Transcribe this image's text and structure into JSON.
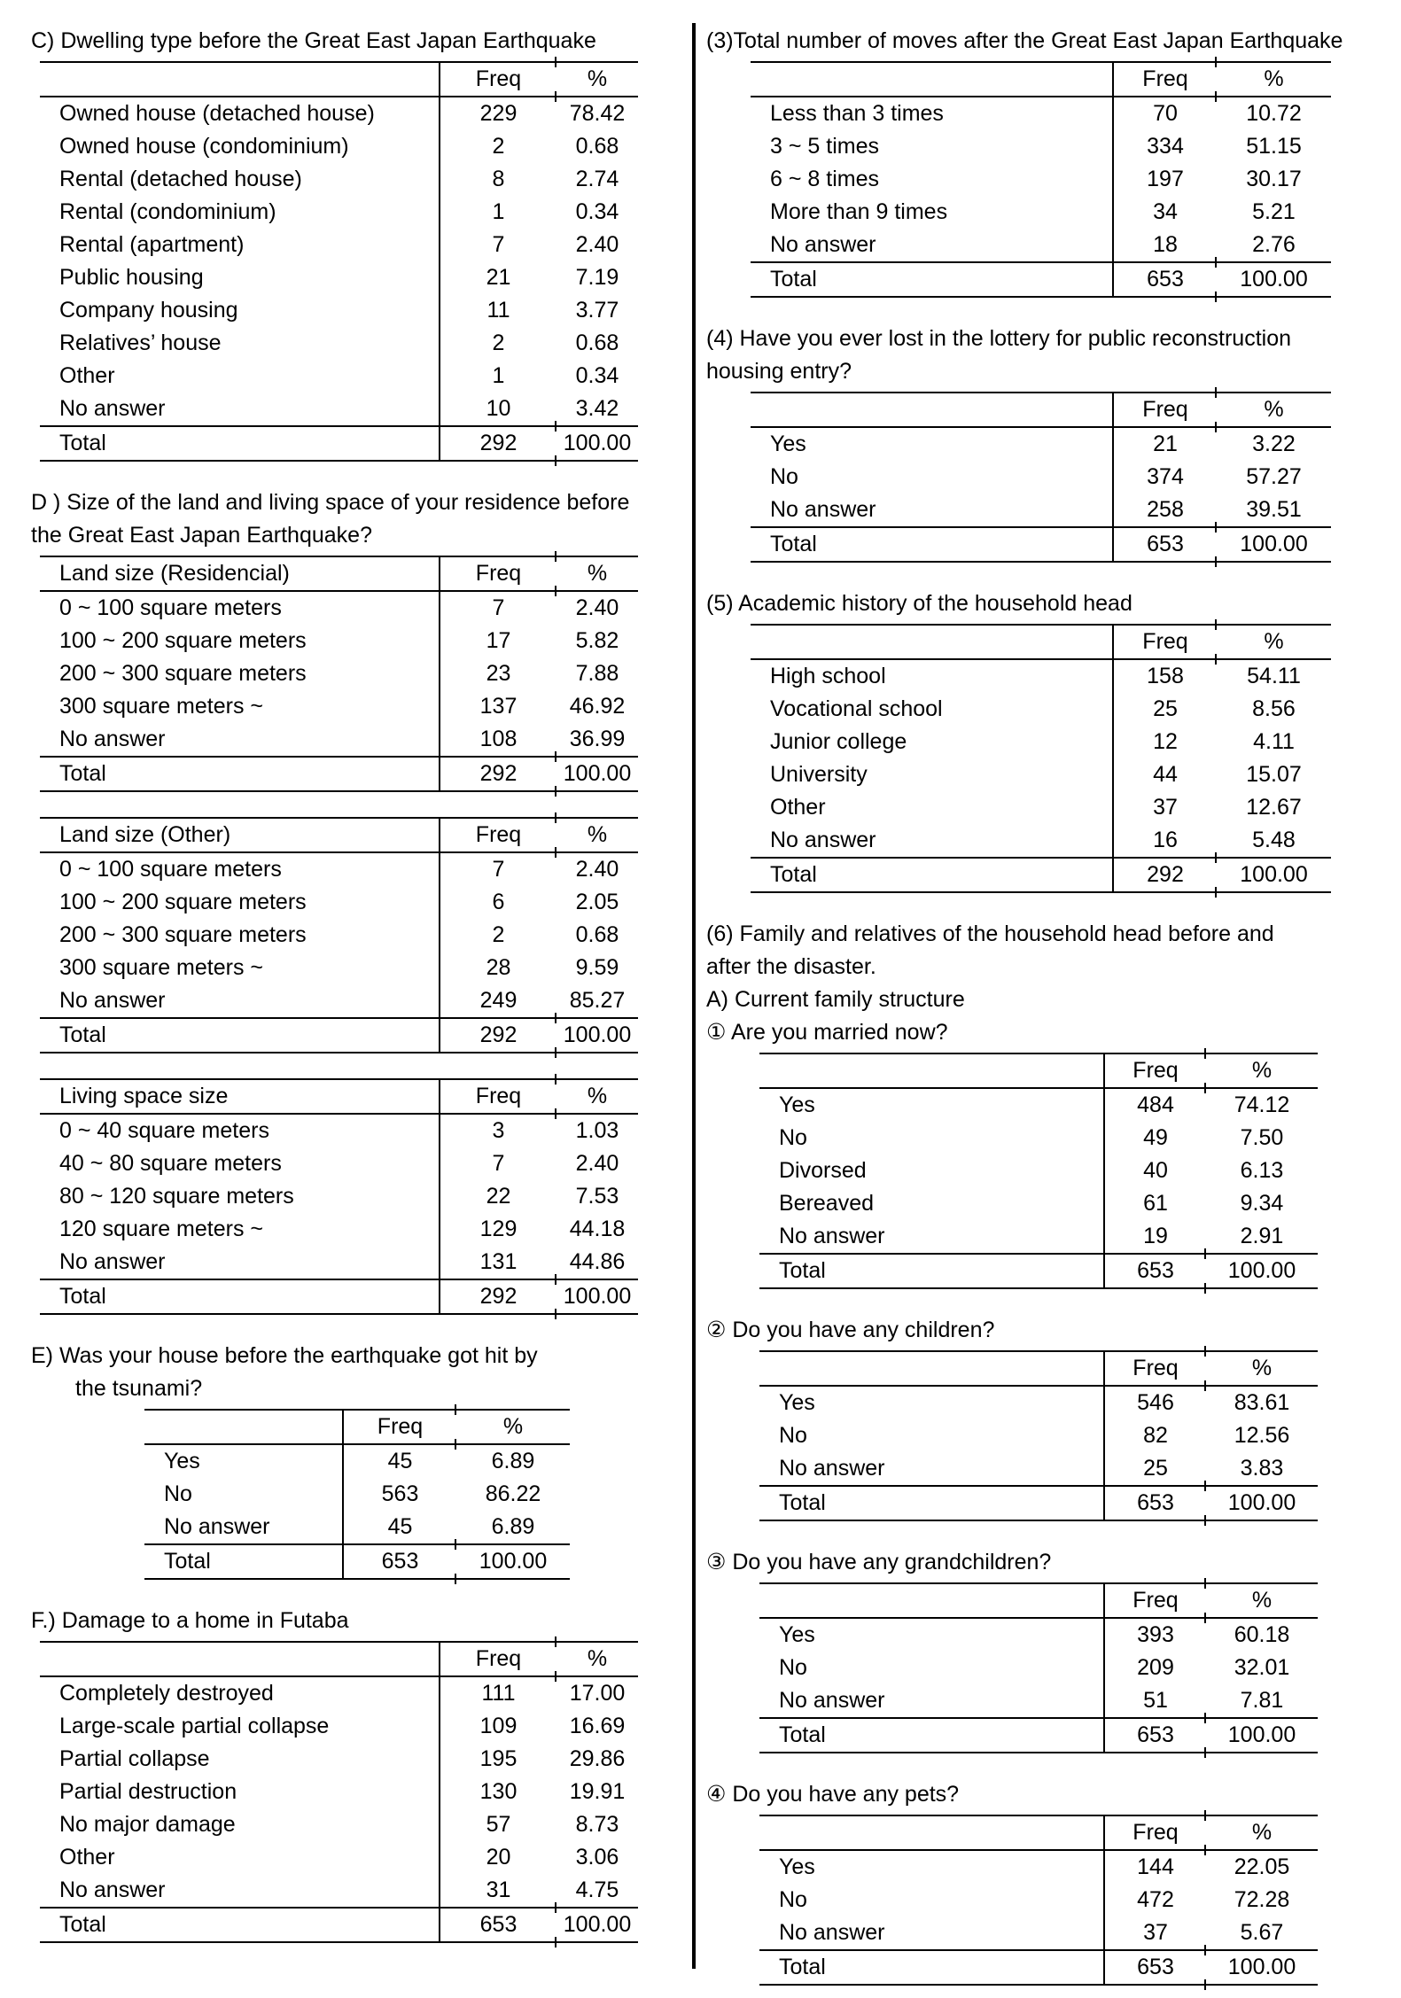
{
  "left": {
    "sections": [
      {
        "id": "C",
        "title_lines": [
          "C) Dwelling type before the Great East Japan Earthquake"
        ],
        "table": {
          "header_label": "",
          "columns": {
            "freq": "Freq",
            "pct": "%"
          },
          "rows": [
            {
              "label": "Owned house (detached house)",
              "freq": "229",
              "pct": "78.42"
            },
            {
              "label": "Owned house (condominium)",
              "freq": "2",
              "pct": "0.68"
            },
            {
              "label": "Rental (detached house)",
              "freq": "8",
              "pct": "2.74"
            },
            {
              "label": "Rental (condominium)",
              "freq": "1",
              "pct": "0.34"
            },
            {
              "label": "Rental (apartment)",
              "freq": "7",
              "pct": "2.40"
            },
            {
              "label": "Public housing",
              "freq": "21",
              "pct": "7.19"
            },
            {
              "label": "Company housing",
              "freq": "11",
              "pct": "3.77"
            },
            {
              "label": "Relatives’ house",
              "freq": "2",
              "pct": "0.68"
            },
            {
              "label": "Other",
              "freq": "1",
              "pct": "0.34"
            },
            {
              "label": "No answer",
              "freq": "10",
              "pct": "3.42"
            }
          ],
          "total": {
            "label": "Total",
            "freq": "292",
            "pct": "100.00"
          }
        }
      },
      {
        "id": "D-residential",
        "title_lines": [
          "D ) Size of the land and living space of your residence before",
          "the Great East Japan Earthquake?"
        ],
        "table": {
          "header_label": "Land size (Residencial)",
          "columns": {
            "freq": "Freq",
            "pct": "%"
          },
          "rows": [
            {
              "label": "0 ~ 100 square meters",
              "freq": "7",
              "pct": "2.40"
            },
            {
              "label": "100 ~ 200 square meters",
              "freq": "17",
              "pct": "5.82"
            },
            {
              "label": "200 ~ 300 square meters",
              "freq": "23",
              "pct": "7.88"
            },
            {
              "label": "300 square meters ~",
              "freq": "137",
              "pct": "46.92"
            },
            {
              "label": "No answer",
              "freq": "108",
              "pct": "36.99"
            }
          ],
          "total": {
            "label": "Total",
            "freq": "292",
            "pct": "100.00"
          }
        }
      },
      {
        "id": "D-other",
        "title_lines": [],
        "table": {
          "header_label": "Land size (Other)",
          "columns": {
            "freq": "Freq",
            "pct": "%"
          },
          "rows": [
            {
              "label": "0 ~ 100 square meters",
              "freq": "7",
              "pct": "2.40"
            },
            {
              "label": "100 ~ 200 square meters",
              "freq": "6",
              "pct": "2.05"
            },
            {
              "label": "200 ~ 300 square meters",
              "freq": "2",
              "pct": "0.68"
            },
            {
              "label": "300 square meters ~",
              "freq": "28",
              "pct": "9.59"
            },
            {
              "label": "No answer",
              "freq": "249",
              "pct": "85.27"
            }
          ],
          "total": {
            "label": "Total",
            "freq": "292",
            "pct": "100.00"
          }
        }
      },
      {
        "id": "D-living-space",
        "title_lines": [],
        "table": {
          "header_label": "Living space size",
          "columns": {
            "freq": "Freq",
            "pct": "%"
          },
          "rows": [
            {
              "label": "0 ~ 40 square meters",
              "freq": "3",
              "pct": "1.03"
            },
            {
              "label": "40 ~ 80 square meters",
              "freq": "7",
              "pct": "2.40"
            },
            {
              "label": "80 ~ 120 square meters",
              "freq": "22",
              "pct": "7.53"
            },
            {
              "label": "120 square meters ~",
              "freq": "129",
              "pct": "44.18"
            },
            {
              "label": "No answer",
              "freq": "131",
              "pct": "44.86"
            }
          ],
          "total": {
            "label": "Total",
            "freq": "292",
            "pct": "100.00"
          }
        }
      },
      {
        "id": "E",
        "title_lines": [
          "E) Was your house before the earthquake got hit by",
          "the tsunami?"
        ],
        "table": {
          "header_label": "",
          "columns": {
            "freq": "Freq",
            "pct": "%"
          },
          "rows": [
            {
              "label": "Yes",
              "freq": "45",
              "pct": "6.89"
            },
            {
              "label": "No",
              "freq": "563",
              "pct": "86.22"
            },
            {
              "label": "No answer",
              "freq": "45",
              "pct": "6.89"
            }
          ],
          "total": {
            "label": "Total",
            "freq": "653",
            "pct": "100.00"
          }
        }
      },
      {
        "id": "F",
        "title_lines": [
          "F.) Damage to a home in Futaba"
        ],
        "table": {
          "header_label": "",
          "columns": {
            "freq": "Freq",
            "pct": "%"
          },
          "rows": [
            {
              "label": "Completely destroyed",
              "freq": "111",
              "pct": "17.00"
            },
            {
              "label": "Large-scale partial collapse",
              "freq": "109",
              "pct": "16.69"
            },
            {
              "label": "Partial collapse",
              "freq": "195",
              "pct": "29.86"
            },
            {
              "label": "Partial destruction",
              "freq": "130",
              "pct": "19.91"
            },
            {
              "label": "No major damage",
              "freq": "57",
              "pct": "8.73"
            },
            {
              "label": "Other",
              "freq": "20",
              "pct": "3.06"
            },
            {
              "label": "No answer",
              "freq": "31",
              "pct": "4.75"
            }
          ],
          "total": {
            "label": "Total",
            "freq": "653",
            "pct": "100.00"
          }
        }
      }
    ]
  },
  "right": {
    "sections": [
      {
        "id": "3-moves",
        "title_lines": [
          "(3)Total number of moves after the Great East Japan Earthquake"
        ],
        "table": {
          "header_label": "",
          "columns": {
            "freq": "Freq",
            "pct": "%"
          },
          "rows": [
            {
              "label": "Less than 3 times",
              "freq": "70",
              "pct": "10.72"
            },
            {
              "label": "3 ~ 5 times",
              "freq": "334",
              "pct": "51.15"
            },
            {
              "label": "6 ~ 8 times",
              "freq": "197",
              "pct": "30.17"
            },
            {
              "label": "More than 9 times",
              "freq": "34",
              "pct": "5.21"
            },
            {
              "label": "No answer",
              "freq": "18",
              "pct": "2.76"
            }
          ],
          "total": {
            "label": "Total",
            "freq": "653",
            "pct": "100.00"
          }
        }
      },
      {
        "id": "4-lottery",
        "title_lines": [
          "(4) Have you ever lost in the lottery for public reconstruction",
          "housing entry?"
        ],
        "table": {
          "header_label": "",
          "columns": {
            "freq": "Freq",
            "pct": "%"
          },
          "rows": [
            {
              "label": "Yes",
              "freq": "21",
              "pct": "3.22"
            },
            {
              "label": "No",
              "freq": "374",
              "pct": "57.27"
            },
            {
              "label": "No answer",
              "freq": "258",
              "pct": "39.51"
            }
          ],
          "total": {
            "label": "Total",
            "freq": "653",
            "pct": "100.00"
          }
        }
      },
      {
        "id": "5-academic",
        "title_lines": [
          "(5) Academic history of the household head"
        ],
        "table": {
          "header_label": "",
          "columns": {
            "freq": "Freq",
            "pct": "%"
          },
          "rows": [
            {
              "label": "High school",
              "freq": "158",
              "pct": "54.11"
            },
            {
              "label": "Vocational school",
              "freq": "25",
              "pct": "8.56"
            },
            {
              "label": "Junior college",
              "freq": "12",
              "pct": "4.11"
            },
            {
              "label": "University",
              "freq": "44",
              "pct": "15.07"
            },
            {
              "label": "Other",
              "freq": "37",
              "pct": "12.67"
            },
            {
              "label": "No answer",
              "freq": "16",
              "pct": "5.48"
            }
          ],
          "total": {
            "label": "Total",
            "freq": "292",
            "pct": "100.00"
          }
        }
      },
      {
        "id": "6-married",
        "title_lines": [
          "(6) Family and relatives of the household head before and",
          "after the disaster.",
          "A) Current family structure",
          "① Are you married now?"
        ],
        "table": {
          "header_label": "",
          "columns": {
            "freq": "Freq",
            "pct": "%"
          },
          "rows": [
            {
              "label": "Yes",
              "freq": "484",
              "pct": "74.12"
            },
            {
              "label": "No",
              "freq": "49",
              "pct": "7.50"
            },
            {
              "label": "Divorsed",
              "freq": "40",
              "pct": "6.13"
            },
            {
              "label": "Bereaved",
              "freq": "61",
              "pct": "9.34"
            },
            {
              "label": "No answer",
              "freq": "19",
              "pct": "2.91"
            }
          ],
          "total": {
            "label": "Total",
            "freq": "653",
            "pct": "100.00"
          }
        }
      },
      {
        "id": "q2-children",
        "title_lines": [
          "② Do you have any children?"
        ],
        "table": {
          "header_label": "",
          "columns": {
            "freq": "Freq",
            "pct": "%"
          },
          "rows": [
            {
              "label": "Yes",
              "freq": "546",
              "pct": "83.61"
            },
            {
              "label": "No",
              "freq": "82",
              "pct": "12.56"
            },
            {
              "label": "No answer",
              "freq": "25",
              "pct": "3.83"
            }
          ],
          "total": {
            "label": "Total",
            "freq": "653",
            "pct": "100.00"
          }
        }
      },
      {
        "id": "q3-grandchildren",
        "title_lines": [
          "③ Do you have any grandchildren?"
        ],
        "table": {
          "header_label": "",
          "columns": {
            "freq": "Freq",
            "pct": "%"
          },
          "rows": [
            {
              "label": "Yes",
              "freq": "393",
              "pct": "60.18"
            },
            {
              "label": "No",
              "freq": "209",
              "pct": "32.01"
            },
            {
              "label": "No answer",
              "freq": "51",
              "pct": "7.81"
            }
          ],
          "total": {
            "label": "Total",
            "freq": "653",
            "pct": "100.00"
          }
        }
      },
      {
        "id": "q4-pets",
        "title_lines": [
          "④ Do you have any pets?"
        ],
        "table": {
          "header_label": "",
          "columns": {
            "freq": "Freq",
            "pct": "%"
          },
          "rows": [
            {
              "label": "Yes",
              "freq": "144",
              "pct": "22.05"
            },
            {
              "label": "No",
              "freq": "472",
              "pct": "72.28"
            },
            {
              "label": "No answer",
              "freq": "37",
              "pct": "5.67"
            }
          ],
          "total": {
            "label": "Total",
            "freq": "653",
            "pct": "100.00"
          }
        }
      }
    ]
  }
}
